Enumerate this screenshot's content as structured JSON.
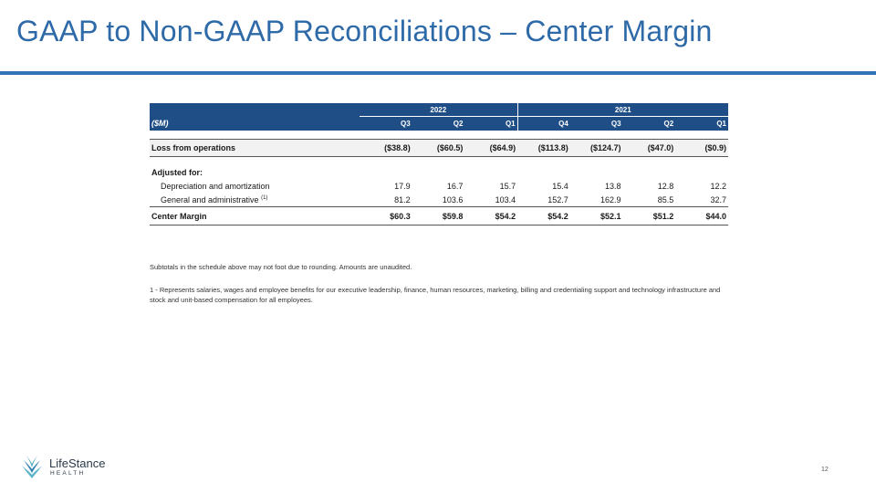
{
  "title": "GAAP to Non-GAAP Reconciliations – Center Margin",
  "table": {
    "unit_label": "($M)",
    "years": [
      "2022",
      "2021"
    ],
    "quarters": [
      "Q3",
      "Q2",
      "Q1",
      "Q4",
      "Q3",
      "Q2",
      "Q1"
    ],
    "loss_from_operations": {
      "label": "Loss from operations",
      "values": [
        "($38.8)",
        "($60.5)",
        "($64.9)",
        "($113.8)",
        "($124.7)",
        "($47.0)",
        "($0.9)"
      ]
    },
    "adjusted_for_label": "Adjusted for:",
    "depreciation": {
      "label": "Depreciation and amortization",
      "values": [
        "17.9",
        "16.7",
        "15.7",
        "15.4",
        "13.8",
        "12.8",
        "12.2"
      ]
    },
    "general_admin": {
      "label": "General and administrative",
      "footnote_mark": "(1)",
      "values": [
        "81.2",
        "103.6",
        "103.4",
        "152.7",
        "162.9",
        "85.5",
        "32.7"
      ]
    },
    "center_margin": {
      "label": "Center Margin",
      "values": [
        "$60.3",
        "$59.8",
        "$54.2",
        "$54.2",
        "$52.1",
        "$51.2",
        "$44.0"
      ]
    }
  },
  "notes": {
    "subtotals": "Subtotals in the schedule above may not foot due to rounding. Amounts are unaudited.",
    "footnote_1": "1 - Represents salaries, wages and employee benefits for our executive leadership, finance, human resources, marketing, billing and credentialing support and technology infrastructure and stock and unit-based compensation for all employees."
  },
  "logo": {
    "name": "LifeStance",
    "subtitle": "HEALTH"
  },
  "page_number": "12"
}
